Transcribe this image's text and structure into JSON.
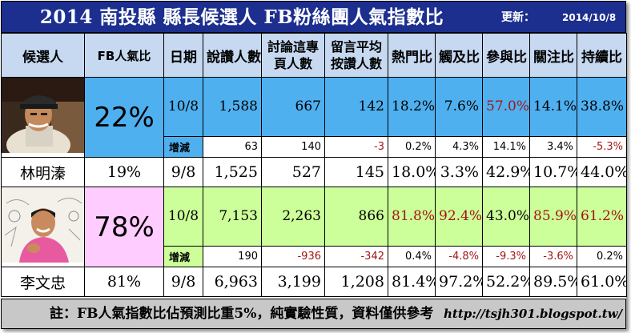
{
  "title": "2014 南投縣 縣長候選人 FB粉絲團人氣指數比",
  "update_label": "更新：",
  "update_date": "2014/10/8",
  "headers": [
    "候選人",
    "FB人氣比",
    "日期",
    "說讚人數",
    "討論這專頁人數",
    "留言平均按讚人數",
    "熱門比",
    "觸及比",
    "參與比",
    "關注比",
    "持續比"
  ],
  "candidates": [
    {
      "name": "林明溱",
      "fb_share": "22%",
      "main": {
        "date": "10/8",
        "likes": "1,588",
        "talking": "667",
        "avg_comment_likes": "142",
        "hot": "18.2%",
        "reach": "7.6%",
        "engage": "57.0%",
        "attention": "14.1%",
        "sustain": "38.8%"
      },
      "delta": {
        "label": "增減",
        "likes": "63",
        "talking": "140",
        "avg_comment_likes": "-3",
        "hot": "0.2%",
        "reach": "4.3%",
        "engage": "14.1%",
        "attention": "3.4%",
        "sustain": "-5.3%"
      },
      "prev": {
        "fb_share": "19%",
        "date": "9/8",
        "likes": "1,525",
        "talking": "527",
        "avg_comment_likes": "145",
        "hot": "18.0%",
        "reach": "3.3%",
        "engage": "42.9%",
        "attention": "10.7%",
        "sustain": "44.0%"
      }
    },
    {
      "name": "李文忠",
      "fb_share": "78%",
      "main": {
        "date": "10/8",
        "likes": "7,153",
        "talking": "2,263",
        "avg_comment_likes": "866",
        "hot": "81.8%",
        "reach": "92.4%",
        "engage": "43.0%",
        "attention": "85.9%",
        "sustain": "61.2%"
      },
      "delta": {
        "label": "增減",
        "likes": "190",
        "talking": "-936",
        "avg_comment_likes": "-342",
        "hot": "0.4%",
        "reach": "-4.8%",
        "engage": "-9.3%",
        "attention": "-3.6%",
        "sustain": "0.2%"
      },
      "prev": {
        "fb_share": "81%",
        "date": "9/8",
        "likes": "6,963",
        "talking": "3,199",
        "avg_comment_likes": "1,208",
        "hot": "81.4%",
        "reach": "97.2%",
        "engage": "52.2%",
        "attention": "89.5%",
        "sustain": "61.0%"
      }
    }
  ],
  "footer_note": "註：FB人氣指數比佔預測比重5%，純實驗性質，資料僅供參考",
  "footer_url": "http://tsjh301.blogspot.tw/",
  "colors": {
    "title_bg": "#1c2f8f",
    "header_bg": "#c6d9f1",
    "cand1_bg": "#4fb0f0",
    "cand2_bg": "#ccff99",
    "cand2_share_bg": "#ffccff",
    "footer_bg": "#c8c8c8",
    "highlight_text": "#a31515"
  }
}
